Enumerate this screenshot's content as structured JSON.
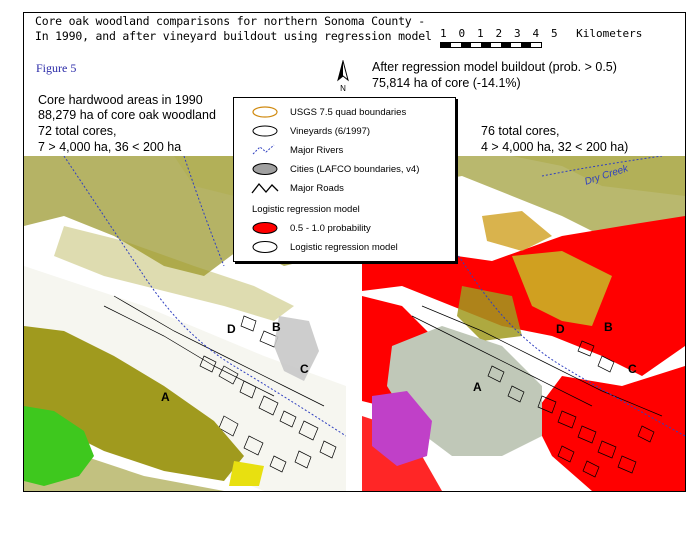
{
  "title": {
    "line1": "Core oak woodland comparisons for northern Sonoma County -",
    "line2": "In 1990, and after vineyard buildout using regression model"
  },
  "figure_label": "Figure 5",
  "scale": {
    "ticks": [
      "1",
      "0",
      "1",
      "2",
      "3",
      "4",
      "5"
    ],
    "unit": "Kilometers"
  },
  "north_label": "N",
  "left_panel": {
    "heading": "Core hardwood areas in 1990",
    "area": "88,279 ha of core oak woodland",
    "cores": "72 total cores,",
    "breakdown": "7 > 4,000 ha, 36 < 200 ha",
    "letters": [
      "D",
      "B",
      "C",
      "A"
    ]
  },
  "right_panel": {
    "heading": "After regression model buildout (prob. > 0.5)",
    "area": "75,814 ha of core (-14.1%)",
    "cores": "76 total cores,",
    "breakdown": "4 > 4,000 ha, 32 < 200 ha)",
    "letters": [
      "D",
      "B",
      "C",
      "A"
    ],
    "river_label": "Dry Creek"
  },
  "legend": {
    "items": [
      {
        "label": "USGS 7.5 quad boundaries",
        "icon": "orange-outline-icon"
      },
      {
        "label": "Vineyards (6/1997)",
        "icon": "black-outline-icon"
      },
      {
        "label": "Major Rivers",
        "icon": "river-icon"
      },
      {
        "label": "Cities (LAFCO boundaries, v4)",
        "icon": "gray-fill-icon"
      },
      {
        "label": "Major Roads",
        "icon": "road-icon"
      }
    ],
    "model_heading": "Logistic regression model",
    "model_items": [
      {
        "label": "0.5 - 1.0 probability",
        "color": "#ff0000"
      },
      {
        "label": "Logistic regression model",
        "color": "#ffffff"
      }
    ]
  },
  "colors": {
    "hardwood": "#9c9a2c",
    "core_olive": "#a09a1e",
    "core_green": "#3ec81e",
    "core_yellow": "#e8e010",
    "core_gray": "#c0c8b8",
    "core_magenta": "#c040c8",
    "core_orange": "#d0a020",
    "regression_red": "#ff0000"
  }
}
